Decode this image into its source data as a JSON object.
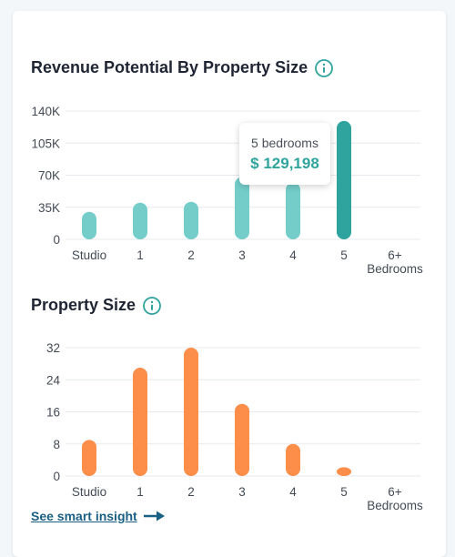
{
  "colors": {
    "revenue_bar": "#74cdc9",
    "revenue_bar_active": "#2fa39d",
    "size_bar": "#fc8e49",
    "grid": "#e6eaee",
    "link": "#1a5f84"
  },
  "revenue_section": {
    "title": "Revenue Potential By Property Size"
  },
  "size_section": {
    "title": "Property Size"
  },
  "tooltip": {
    "label": "5 bedrooms",
    "value": "$ 129,198"
  },
  "insight_link": {
    "label": "See smart insight"
  },
  "chart_data": [
    {
      "type": "bar",
      "title": "Revenue Potential By Property Size",
      "categories": [
        "Studio",
        "1",
        "2",
        "3",
        "4",
        "5",
        "6+ Bedrooms"
      ],
      "category_lines": [
        [
          "Studio"
        ],
        [
          "1"
        ],
        [
          "2"
        ],
        [
          "3"
        ],
        [
          "4"
        ],
        [
          "5"
        ],
        [
          "6+",
          "Bedrooms"
        ]
      ],
      "values": [
        30000,
        40000,
        41000,
        68000,
        62000,
        129198,
        0
      ],
      "highlighted_index": 5,
      "yticks": [
        0,
        35000,
        70000,
        105000,
        140000
      ],
      "ytick_labels": [
        "0",
        "35K",
        "70K",
        "105K",
        "140K"
      ],
      "ylim": [
        0,
        140000
      ],
      "grid": true
    },
    {
      "type": "bar",
      "title": "Property Size",
      "categories": [
        "Studio",
        "1",
        "2",
        "3",
        "4",
        "5",
        "6+ Bedrooms"
      ],
      "category_lines": [
        [
          "Studio"
        ],
        [
          "1"
        ],
        [
          "2"
        ],
        [
          "3"
        ],
        [
          "4"
        ],
        [
          "5"
        ],
        [
          "6+",
          "Bedrooms"
        ]
      ],
      "values": [
        9,
        27,
        32,
        18,
        8,
        2,
        0
      ],
      "yticks": [
        0,
        8,
        16,
        24,
        32
      ],
      "ytick_labels": [
        "0",
        "8",
        "16",
        "24",
        "32"
      ],
      "ylim": [
        0,
        32
      ],
      "grid": true
    }
  ]
}
